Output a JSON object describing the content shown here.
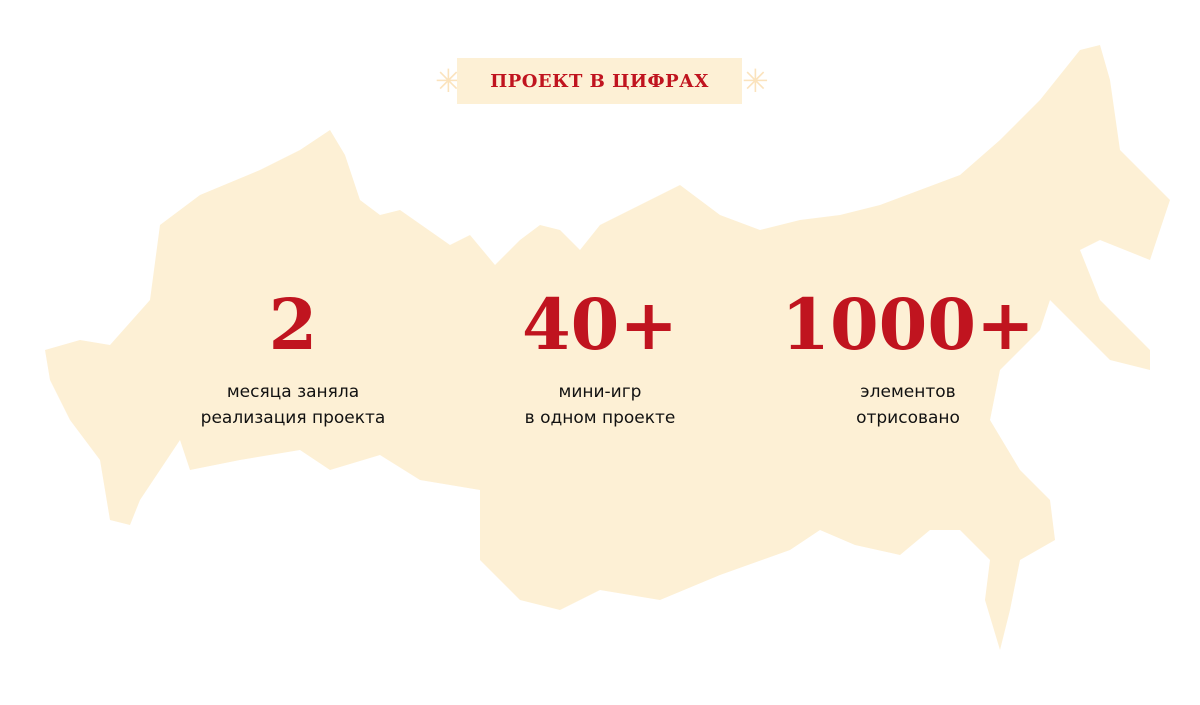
{
  "colors": {
    "map": "#fdf0d5",
    "accent": "#c0141f",
    "text": "#111111"
  },
  "header": {
    "title": "ПРОЕКТ В ЦИФРАХ"
  },
  "stats": [
    {
      "value": "2",
      "line1": "месяца заняла",
      "line2": "реализация проекта"
    },
    {
      "value": "40+",
      "line1": "мини-игр",
      "line2": "в одном проекте"
    },
    {
      "value": "1000+",
      "line1": "элементов",
      "line2": "отрисовано"
    }
  ]
}
